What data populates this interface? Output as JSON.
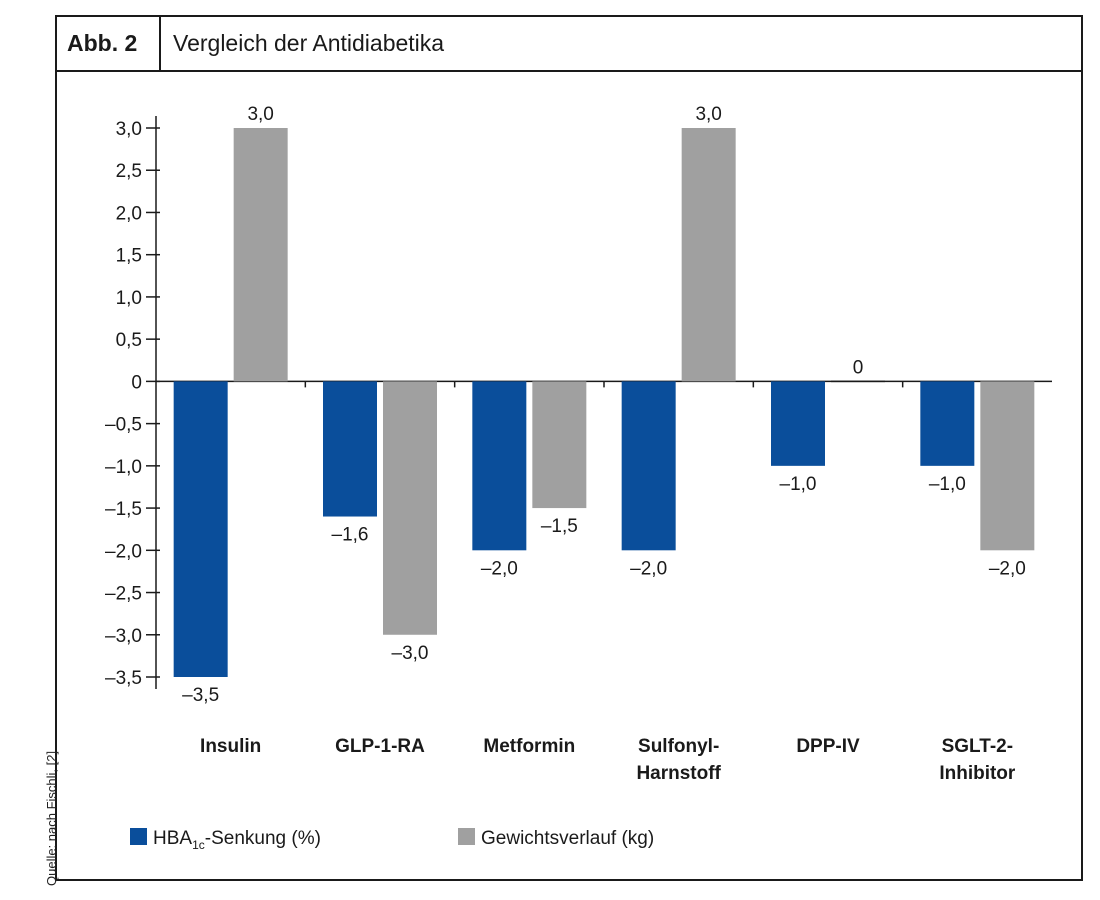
{
  "figure": {
    "label": "Abb. 2",
    "title": "Vergleich der Antidiabetika",
    "source": "Quelle: nach Fischli, [2]"
  },
  "colors": {
    "blue": "#0a4e9b",
    "gray": "#a0a0a0",
    "axis": "#1a1a1a"
  },
  "chart_data": {
    "type": "bar",
    "categories": [
      [
        "Insulin"
      ],
      [
        "GLP-1-RA"
      ],
      [
        "Metformin"
      ],
      [
        "Sulfonyl-",
        "Harnstoff"
      ],
      [
        "DPP-IV"
      ],
      [
        "SGLT-2-",
        "Inhibitor"
      ]
    ],
    "series": [
      {
        "name_main": "HBA",
        "name_sub": "1c",
        "name_rest": "-Senkung (%)",
        "color": "#0a4e9b",
        "values": [
          -3.5,
          -1.6,
          -2.0,
          -2.0,
          -1.0,
          -1.0
        ],
        "labels": [
          "–3,5",
          "–1,6",
          "–2,0",
          "–2,0",
          "–1,0",
          "–1,0"
        ]
      },
      {
        "name_main": "Gewichtsverlauf (kg)",
        "name_sub": "",
        "name_rest": "",
        "color": "#a0a0a0",
        "values": [
          3.0,
          -3.0,
          -1.5,
          3.0,
          0,
          -2.0
        ],
        "labels": [
          "3,0",
          "–3,0",
          "–1,5",
          "3,0",
          "0",
          "–2,0"
        ]
      }
    ],
    "ylim": [
      -3.5,
      3.0
    ],
    "yticks": [
      3.0,
      2.5,
      2.0,
      1.5,
      1.0,
      0.5,
      0,
      -0.5,
      -1.0,
      -1.5,
      -2.0,
      -2.5,
      -3.0,
      -3.5
    ],
    "ytick_labels": [
      "3,0",
      "2,5",
      "2,0",
      "1,5",
      "1,0",
      "0,5",
      "0",
      "–0,5",
      "–1,0",
      "–1,5",
      "–2,0",
      "–2,5",
      "–3,0",
      "–3,5"
    ],
    "legend_position": "bottom-left",
    "grid": false
  }
}
